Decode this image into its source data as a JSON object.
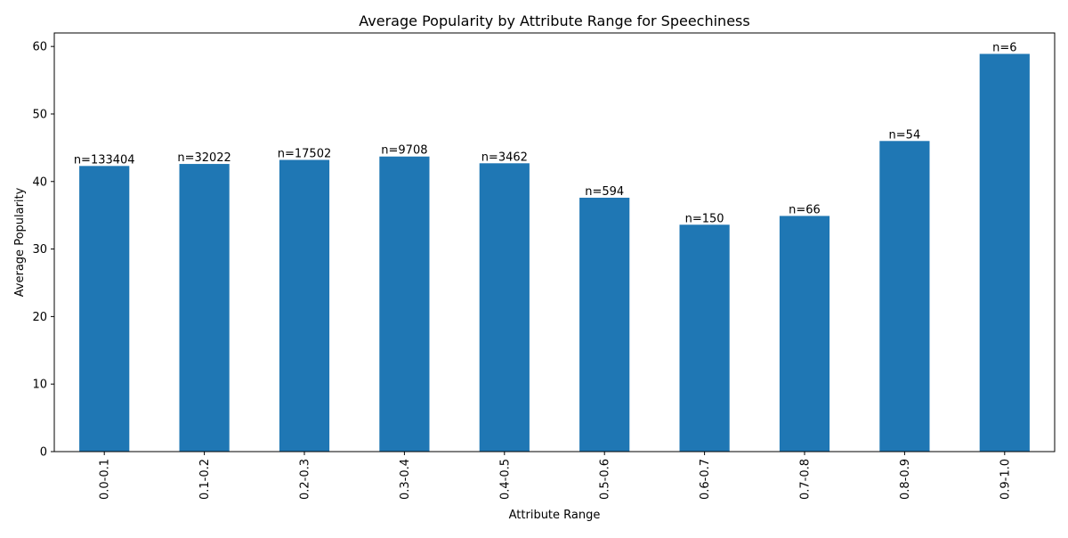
{
  "chart_data": {
    "type": "bar",
    "title": "Average Popularity by Attribute Range for Speechiness",
    "xlabel": "Attribute Range",
    "ylabel": "Average Popularity",
    "categories": [
      "0.0-0.1",
      "0.1-0.2",
      "0.2-0.3",
      "0.3-0.4",
      "0.4-0.5",
      "0.5-0.6",
      "0.6-0.7",
      "0.7-0.8",
      "0.8-0.9",
      "0.9-1.0"
    ],
    "values": [
      42.3,
      42.6,
      43.2,
      43.7,
      42.7,
      37.6,
      33.6,
      34.9,
      46.0,
      58.9
    ],
    "data_labels": [
      "n=133404",
      "n=32022",
      "n=17502",
      "n=9708",
      "n=3462",
      "n=594",
      "n=150",
      "n=66",
      "n=54",
      "n=6"
    ],
    "ylim": [
      0,
      62
    ],
    "yticks": [
      0,
      10,
      20,
      30,
      40,
      50,
      60
    ],
    "grid": false,
    "legend": "none",
    "bar_color": "#1f77b4"
  }
}
